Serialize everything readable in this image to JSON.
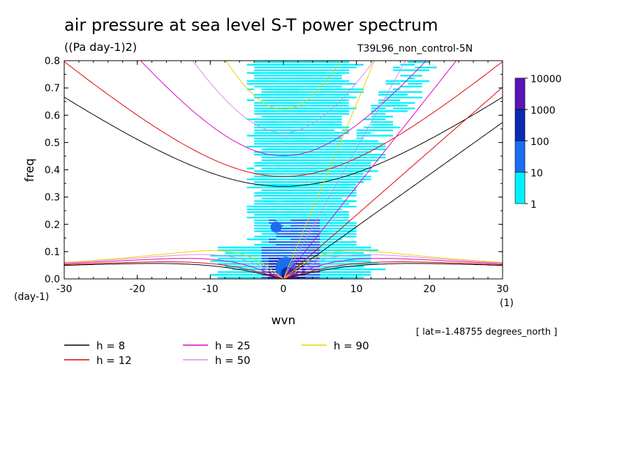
{
  "title": "air pressure at sea level S-T power spectrum",
  "units": "((Pa day-1)2)",
  "run_label": "T39L96_non_control-5N",
  "lat_note": "[ lat=-1.48755 degrees_north ]",
  "chart_data": {
    "type": "heatmap",
    "xlabel": "wvn",
    "ylabel": "freq",
    "x_unit": "(1)",
    "y_unit": "(day-1)",
    "xlim": [
      -30,
      30
    ],
    "ylim": [
      0,
      0.8
    ],
    "xticks": [
      "-30",
      "-20",
      "-10",
      "0",
      "10",
      "20",
      "30"
    ],
    "yticks": [
      "0.0",
      "0.1",
      "0.2",
      "0.3",
      "0.4",
      "0.5",
      "0.6",
      "0.7",
      "0.8"
    ],
    "colorbar": {
      "levels": [
        "10000",
        "1000",
        "100",
        "10",
        "1"
      ],
      "colors": [
        "#5a14b8",
        "#0a2ab4",
        "#1a6ef0",
        "#00f0ff"
      ]
    },
    "dispersion_curves": [
      {
        "name": "h =  8",
        "color": "#000000"
      },
      {
        "name": "h = 12",
        "color": "#e00000"
      },
      {
        "name": "h = 25",
        "color": "#e000c0"
      },
      {
        "name": "h = 50",
        "color": "#d890e0"
      },
      {
        "name": "h = 90",
        "color": "#f0d000"
      }
    ]
  }
}
